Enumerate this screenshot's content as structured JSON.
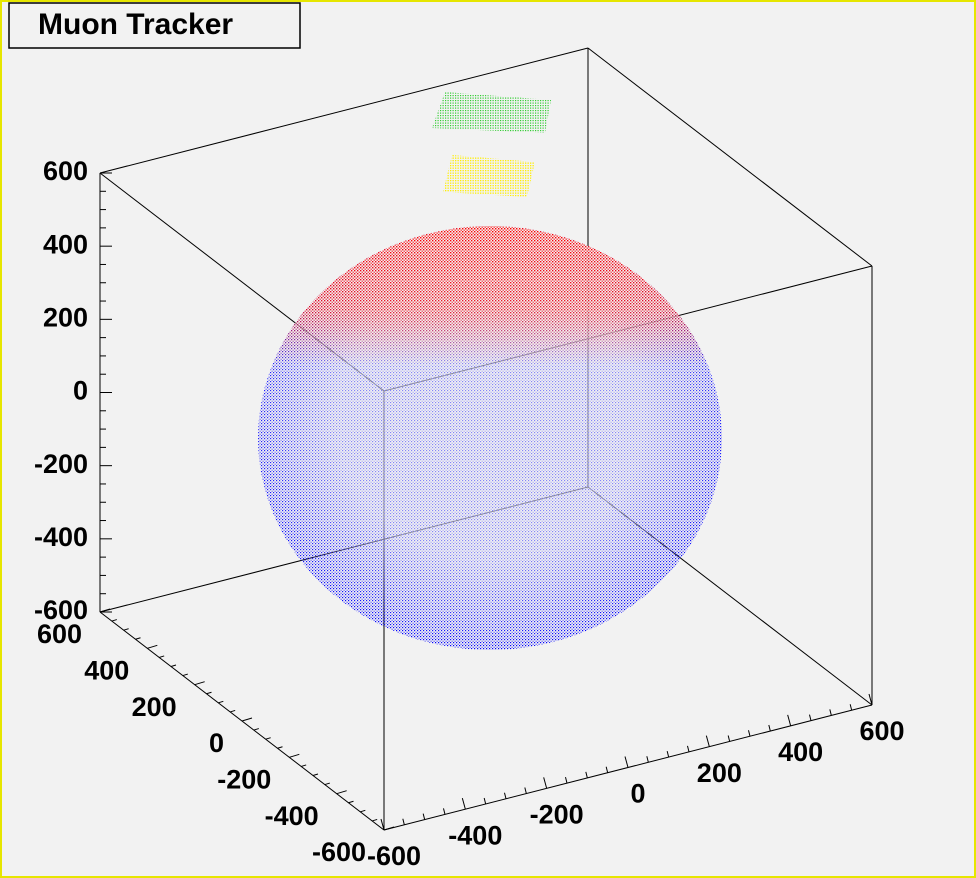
{
  "chart_data": {
    "type": "scatter3d",
    "title": "Muon Tracker",
    "xlim": [
      -600,
      600
    ],
    "xticks": [
      -600,
      -400,
      -200,
      0,
      200,
      400,
      600
    ],
    "ylim": [
      -600,
      600
    ],
    "yticks": [
      -600,
      -400,
      -200,
      0,
      200,
      400,
      600
    ],
    "zlim": [
      -600,
      600
    ],
    "zticks": [
      -600,
      -400,
      -200,
      0,
      200,
      400,
      600
    ]
  }
}
